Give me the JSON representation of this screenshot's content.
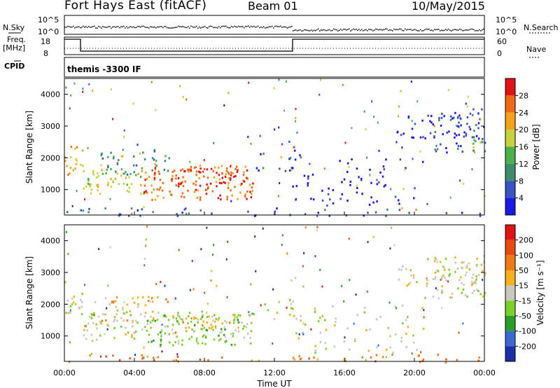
{
  "header": {
    "radar": "Fort Hays East (fitACF)",
    "beam": "Beam 01",
    "date": "10/May/2015"
  },
  "top_panels": {
    "nsky_label": "N.Sky",
    "nsky_ticks": [
      "10^5",
      "10^0"
    ],
    "nsearch_label": "N.Search",
    "nsearch_ticks": [
      "10^5",
      "10^0"
    ],
    "freq_label": "Freq.",
    "freq_unit": "[MHz]",
    "freq_ticks": [
      "18",
      "8"
    ],
    "nave_label": "Nave",
    "nave_ticks": [
      "60",
      "0"
    ],
    "cpid_label": "CPID",
    "cpid_text": "themis -3300 IF"
  },
  "chart_data": [
    {
      "type": "heatmap",
      "name": "power",
      "ylabel": "Slant Range [km]",
      "xlabel": "Time UT",
      "xlim": [
        "00:00",
        "24:00"
      ],
      "x_ticks": [
        "00:00",
        "04:00",
        "08:00",
        "12:00",
        "16:00",
        "20:00",
        "00:00"
      ],
      "ylim": [
        200,
        4500
      ],
      "y_ticks": [
        1000,
        2000,
        3000,
        4000
      ],
      "colorbar_label": "Power [dB]",
      "colorbar_ticks": [
        "28",
        "24",
        "20",
        "16",
        "12",
        "8",
        "4"
      ],
      "colors": [
        "#1a1ae6",
        "#3a52c4",
        "#3d8c6a",
        "#4bb24b",
        "#c8d23a",
        "#f5a21a",
        "#f06a14",
        "#e01414"
      ]
    },
    {
      "type": "heatmap",
      "name": "velocity",
      "ylabel": "Slant Range [km]",
      "xlabel": "Time UT",
      "xlim": [
        "00:00",
        "24:00"
      ],
      "x_ticks": [
        "00:00",
        "04:00",
        "08:00",
        "12:00",
        "16:00",
        "20:00",
        "00:00"
      ],
      "ylim": [
        200,
        4500
      ],
      "y_ticks": [
        1000,
        2000,
        3000,
        4000
      ],
      "colorbar_label": "Velocity [m s⁻¹]",
      "colorbar_ticks": [
        "200",
        "100",
        "50",
        "15",
        "-15",
        "-50",
        "-100",
        "-200"
      ],
      "colors": [
        "#1a2ea8",
        "#3a6ad0",
        "#2a9c2a",
        "#7cd02a",
        "#c8c8c0",
        "#f5b01a",
        "#f07a14",
        "#e84a14",
        "#e01414"
      ]
    }
  ]
}
